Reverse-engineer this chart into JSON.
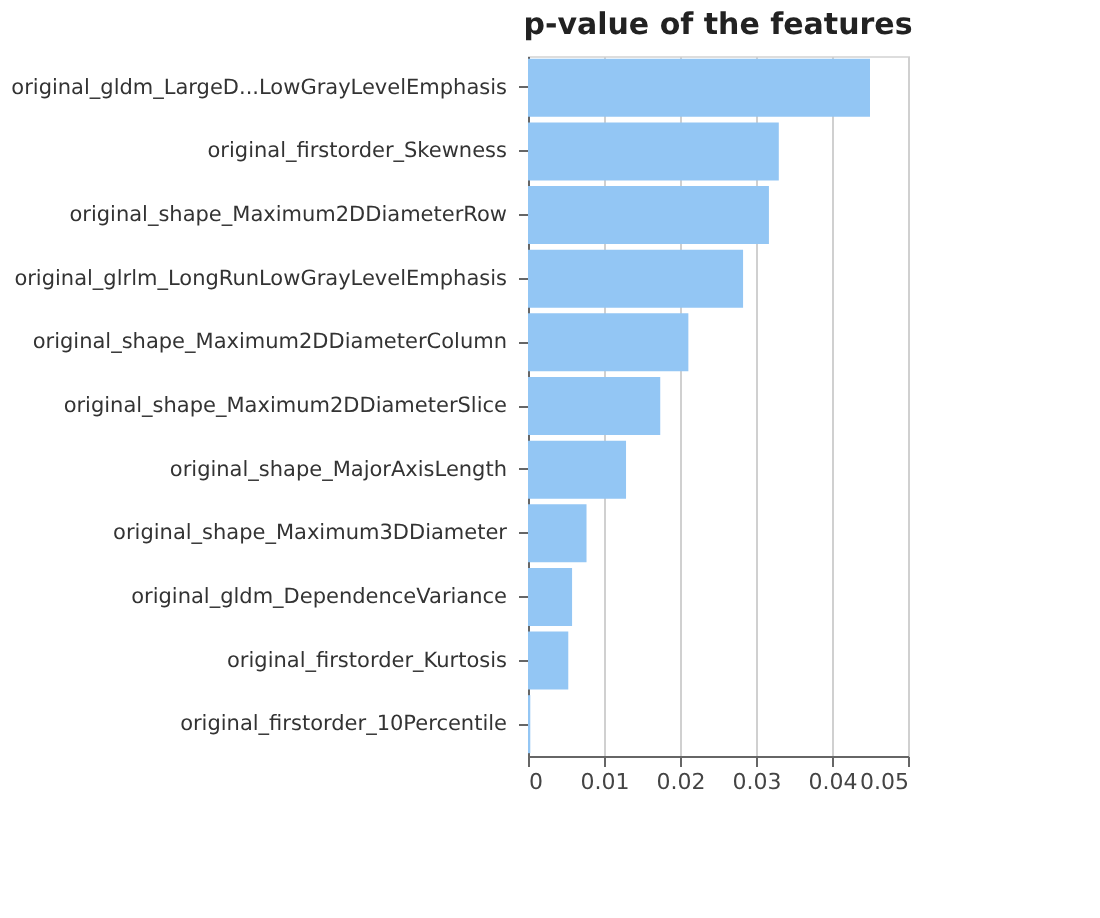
{
  "chart_data": {
    "type": "bar",
    "orientation": "horizontal",
    "title": "p-value of the features",
    "categories": [
      "original_gldm_LargeD...LowGrayLevelEmphasis",
      "original_firstorder_Skewness",
      "original_shape_Maximum2DDiameterRow",
      "original_glrlm_LongRunLowGrayLevelEmphasis",
      "original_shape_Maximum2DDiameterColumn",
      "original_shape_Maximum2DDiameterSlice",
      "original_shape_MajorAxisLength",
      "original_shape_Maximum3DDiameter",
      "original_gldm_DependenceVariance",
      "original_firstorder_Kurtosis",
      "original_firstorder_10Percentile"
    ],
    "values": [
      0.045,
      0.033,
      0.0317,
      0.0283,
      0.0211,
      0.0174,
      0.0129,
      0.0077,
      0.0058,
      0.0053,
      0.0003
    ],
    "color": "#93c6f4",
    "xlim": [
      0,
      0.05
    ],
    "xticks": [
      0,
      0.01,
      0.02,
      0.03,
      0.04,
      0.05
    ],
    "grid": "x"
  }
}
